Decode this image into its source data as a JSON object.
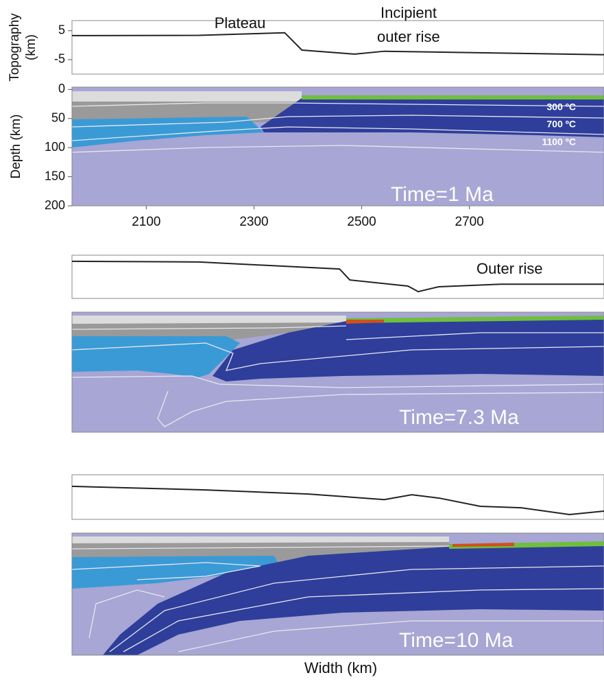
{
  "chart_data": [
    {
      "type": "line",
      "ylabel": [
        "Topography",
        "(km)"
      ],
      "annotations": [
        "Plateau",
        "Incipient",
        "outer rise"
      ],
      "x": [
        1962,
        2198,
        2357,
        2389,
        2487,
        2542,
        2950
      ],
      "values": [
        3.3,
        3.4,
        4.3,
        -1.7,
        -3.1,
        -2.1,
        -3.3
      ],
      "xlim": [
        1962,
        2950
      ],
      "ylim": [
        -10,
        8.5
      ],
      "yticks": [
        -5,
        5
      ],
      "color": "#222222"
    },
    {
      "type": "section",
      "ylabel": "Depth (km)",
      "ylim": [
        -4,
        200
      ],
      "yticks": [
        0,
        50,
        100,
        150,
        200
      ],
      "xlim": [
        1962,
        2950
      ],
      "xticks": [
        2100,
        2300,
        2500,
        2700
      ],
      "annotations": [
        "300 ºC",
        "700 ºC",
        "1100 ºC"
      ],
      "label": "Time=1 Ma"
    },
    {
      "type": "line",
      "annotations": [
        "Outer rise"
      ],
      "x": [
        1962,
        2198,
        2459,
        2478,
        2586,
        2605,
        2643,
        2758,
        2950
      ],
      "values": [
        5.9,
        5.6,
        2.6,
        -2.1,
        -4.7,
        -7.1,
        -5.0,
        -3.9,
        -3.9
      ],
      "xlim": [
        1962,
        2950
      ],
      "ylim": [
        -10,
        8.5
      ],
      "color": "#222222"
    },
    {
      "type": "section",
      "label": "Time=7.3 Ma"
    },
    {
      "type": "line",
      "x": [
        1962,
        2210,
        2401,
        2542,
        2593,
        2644,
        2720,
        2796,
        2886,
        2950
      ],
      "values": [
        3.7,
        2.2,
        0.5,
        -1.8,
        0.2,
        -1.2,
        -4.6,
        -5.2,
        -8.0,
        -6.6
      ],
      "xlim": [
        1962,
        2950
      ],
      "ylim": [
        -10,
        8.5
      ],
      "color": "#222222"
    },
    {
      "type": "section",
      "label": "Time=10 Ma",
      "xlabel": "Width (km)"
    }
  ]
}
